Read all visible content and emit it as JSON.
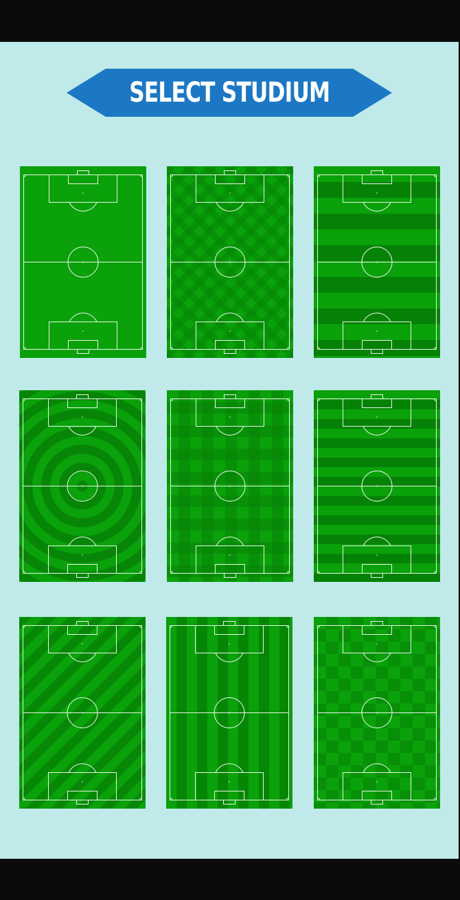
{
  "header": {
    "title": "SELECT STUDIUM",
    "banner_color": "#1c78c4"
  },
  "colors": {
    "background": "#c0eaea",
    "frame": "#0b0b0b",
    "grass_light": "#0aa10a",
    "grass_dark": "#058205",
    "line": "#e8f5e8"
  },
  "stadiums": [
    {
      "id": "plain",
      "pattern": "plain"
    },
    {
      "id": "checker-diagonal",
      "pattern": "argyle"
    },
    {
      "id": "horizontal-bands",
      "pattern": "hbands"
    },
    {
      "id": "concentric-rings",
      "pattern": "rings"
    },
    {
      "id": "plaid",
      "pattern": "plaid"
    },
    {
      "id": "horizontal-stripes",
      "pattern": "hstripes"
    },
    {
      "id": "diagonal-stripes",
      "pattern": "diagonal"
    },
    {
      "id": "vertical-stripes",
      "pattern": "vstripes"
    },
    {
      "id": "checkerboard",
      "pattern": "checker"
    }
  ]
}
